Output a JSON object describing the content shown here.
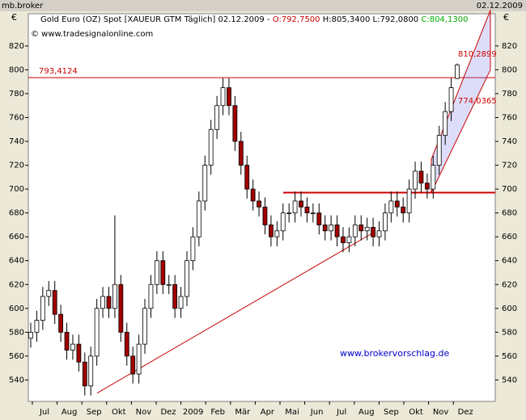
{
  "header": {
    "left": "mb.broker",
    "right": "02.12.2009"
  },
  "chart_data": {
    "type": "candlestick",
    "title_parts": [
      "Gold Euro (OZ) Spot [XAUEUR GTM  Täglich] 02.12.2009 -",
      "O:792,7500",
      "H:805,3400",
      "L:792,0800",
      "C:804,1300"
    ],
    "copyright": "© www.tradesignalonline.com",
    "watermark": "www.brokervorschlag.de",
    "currency": "€",
    "months": [
      "Jul",
      "Aug",
      "Sep",
      "Okt",
      "Nov",
      "Dez",
      "2009",
      "Feb",
      "Mär",
      "Apr",
      "Mai",
      "Jun",
      "Jul",
      "Aug",
      "Sep",
      "Okt",
      "Nov",
      "Dez"
    ],
    "open": [
      575,
      580,
      590,
      610,
      615,
      595,
      580,
      565,
      570,
      555,
      535,
      560,
      600,
      610,
      600,
      620,
      580,
      560,
      545,
      570,
      600,
      620,
      640,
      620,
      620,
      600,
      610,
      640,
      660,
      690,
      720,
      750,
      770,
      785,
      770,
      740,
      720,
      700,
      690,
      685,
      670,
      660,
      665,
      680,
      680,
      690,
      685,
      680,
      680,
      670,
      665,
      670,
      660,
      655,
      660,
      670,
      665,
      668,
      660,
      665,
      680,
      690,
      685,
      680,
      700,
      715,
      705,
      700,
      720,
      745,
      765,
      792.75
    ],
    "high": [
      588,
      598,
      618,
      623,
      623,
      603,
      588,
      578,
      578,
      563,
      568,
      608,
      618,
      618,
      678,
      628,
      588,
      568,
      578,
      608,
      628,
      648,
      648,
      628,
      628,
      618,
      648,
      668,
      698,
      728,
      758,
      778,
      793,
      793,
      778,
      748,
      728,
      708,
      698,
      693,
      678,
      673,
      688,
      688,
      698,
      698,
      693,
      688,
      688,
      678,
      678,
      678,
      668,
      668,
      678,
      678,
      676,
      676,
      673,
      688,
      698,
      698,
      693,
      708,
      723,
      723,
      713,
      728,
      753,
      773,
      793,
      805.34
    ],
    "low": [
      567,
      572,
      582,
      602,
      587,
      572,
      557,
      557,
      547,
      527,
      527,
      552,
      592,
      592,
      592,
      572,
      552,
      537,
      537,
      562,
      592,
      612,
      612,
      612,
      592,
      592,
      602,
      632,
      652,
      682,
      712,
      742,
      762,
      762,
      732,
      712,
      692,
      682,
      677,
      662,
      652,
      652,
      657,
      672,
      672,
      677,
      672,
      672,
      662,
      657,
      657,
      652,
      647,
      647,
      652,
      657,
      657,
      652,
      652,
      657,
      672,
      677,
      672,
      672,
      692,
      697,
      692,
      692,
      712,
      737,
      757,
      792.08
    ],
    "close": [
      580,
      590,
      610,
      615,
      595,
      580,
      565,
      570,
      555,
      535,
      560,
      600,
      610,
      600,
      620,
      580,
      560,
      545,
      570,
      600,
      620,
      640,
      620,
      620,
      600,
      610,
      640,
      660,
      690,
      720,
      750,
      770,
      785,
      770,
      740,
      720,
      700,
      690,
      685,
      670,
      660,
      665,
      680,
      680,
      690,
      685,
      680,
      680,
      670,
      665,
      670,
      660,
      655,
      660,
      670,
      665,
      668,
      660,
      665,
      680,
      690,
      685,
      680,
      700,
      715,
      705,
      700,
      720,
      745,
      765,
      785,
      804.13
    ],
    "up_color": "#ffffff",
    "down_color": "#a00000",
    "ylim": [
      522,
      847
    ],
    "yticks": [
      540,
      560,
      580,
      600,
      620,
      640,
      660,
      680,
      700,
      720,
      740,
      760,
      780,
      800,
      820
    ],
    "resistance": {
      "value": 793.4124,
      "label": "793,4124"
    },
    "support": 697,
    "trendline": [
      529,
      663
    ],
    "channel": {
      "upper": [
        725,
        850
      ],
      "lower": [
        697,
        800
      ],
      "upper_label": {
        "value": 810.2899,
        "label": "810,2899"
      },
      "lower_label": {
        "value": 774.0365,
        "label": "774,0365"
      }
    }
  }
}
